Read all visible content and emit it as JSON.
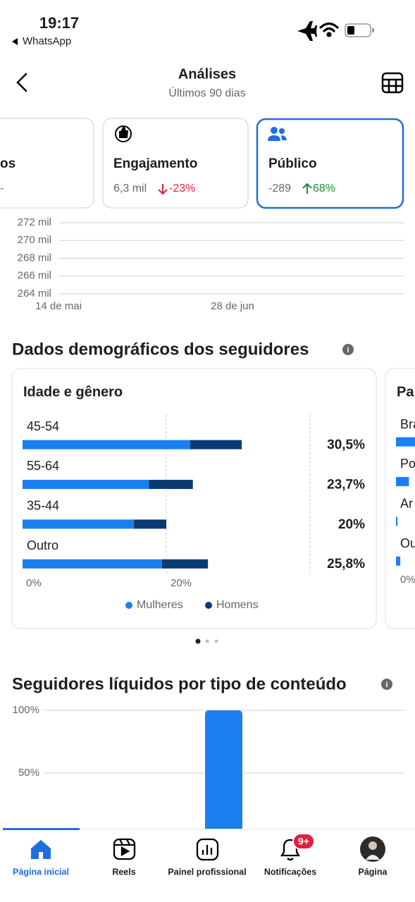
{
  "status_bar": {
    "time": "19:17",
    "back_app": "WhatsApp"
  },
  "header": {
    "title": "Análises",
    "subtitle": "Últimos 90 dias"
  },
  "metric_cards": [
    {
      "title": "os",
      "value": "-"
    },
    {
      "title": "Engajamento",
      "value": "6,3 mil",
      "change": "-23%",
      "trend": "down"
    },
    {
      "title": "Público",
      "value": "-289",
      "change": "68%",
      "trend": "up"
    }
  ],
  "overview_chart": {
    "type": "line",
    "ylim": [
      264000,
      272000
    ],
    "yticks": [
      {
        "value": 272000,
        "label": "272 mil"
      },
      {
        "value": 270000,
        "label": "270 mil"
      },
      {
        "value": 268000,
        "label": "268 mil"
      },
      {
        "value": 266000,
        "label": "266 mil"
      },
      {
        "value": 264000,
        "label": "264 mil"
      }
    ],
    "x_labels": [
      "14 de mai",
      "28 de jun"
    ]
  },
  "demographics": {
    "title": "Dados demográficos dos seguidores",
    "age_gender": {
      "type": "bar",
      "title": "Idade e gênero",
      "categories": [
        "45-54",
        "55-64",
        "35-44",
        "Outro"
      ],
      "series": [
        {
          "name": "Mulheres",
          "color": "#1c7ff0",
          "values": [
            23.3,
            17.6,
            15.5,
            19.4
          ]
        },
        {
          "name": "Homens",
          "color": "#0b3a73",
          "values": [
            7.2,
            6.1,
            4.5,
            6.4
          ]
        }
      ],
      "totals": [
        30.5,
        23.7,
        20,
        25.8
      ],
      "total_labels": [
        "30,5%",
        "23,7%",
        "20%",
        "25,8%"
      ],
      "xlim": [
        0,
        40
      ],
      "xticks": [
        {
          "value": 0,
          "label": "0%"
        },
        {
          "value": 20,
          "label": "20%"
        }
      ]
    },
    "country": {
      "type": "bar",
      "title": "Pa",
      "categories": [
        "Bra",
        "Po",
        "Ar",
        "Ou"
      ],
      "values": [
        2.7,
        1.8,
        0.2,
        0.6
      ],
      "color": "#1c7ff0",
      "xticks": [
        {
          "value": 0,
          "label": "0%"
        }
      ]
    }
  },
  "net_followers": {
    "type": "bar",
    "title": "Seguidores líquidos por tipo de conteúdo",
    "categories": [
      null
    ],
    "values": [
      100
    ],
    "color": "#1c7ff0",
    "ylim": [
      0,
      100
    ],
    "yticks": [
      {
        "value": 100,
        "label": "100%"
      },
      {
        "value": 50,
        "label": "50%"
      }
    ]
  },
  "nav": {
    "items": [
      "Página inicial",
      "Reels",
      "Painel profissional",
      "Notificações",
      "Página"
    ],
    "badge": "9+"
  }
}
